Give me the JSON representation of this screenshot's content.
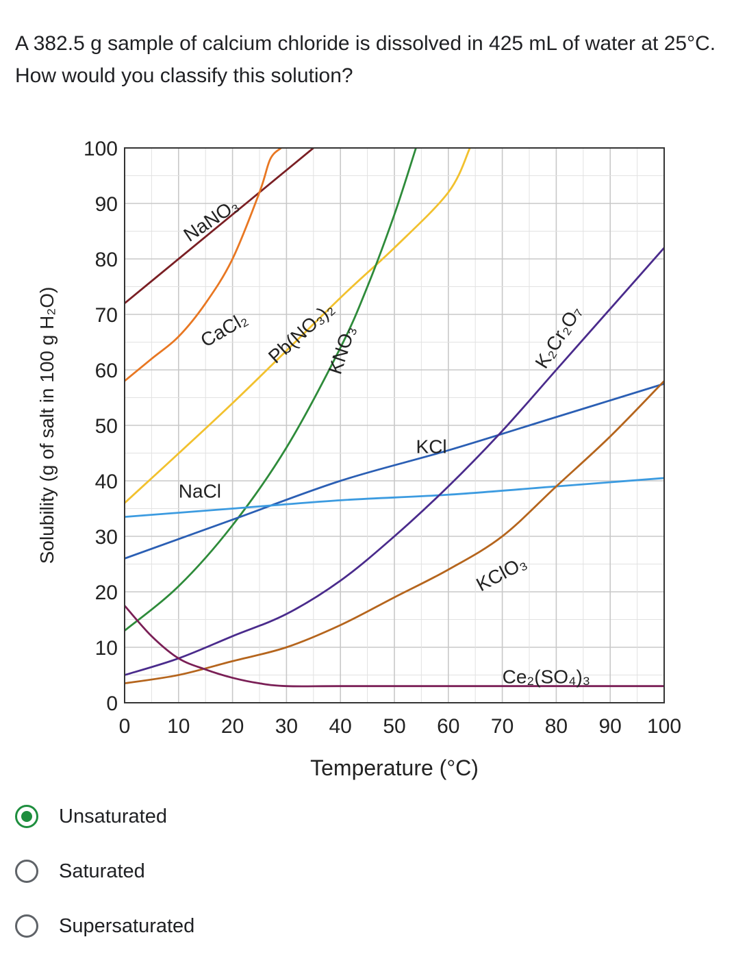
{
  "question": {
    "text": "A 382.5 g sample of calcium chloride is dissolved in 425 mL of water at 25°C. How would you classify this solution?"
  },
  "chart_data": {
    "type": "line",
    "xlabel": "Temperature (°C)",
    "ylabel": "Solubility (g of salt in 100 g H₂O)",
    "xlim": [
      0,
      100
    ],
    "ylim": [
      0,
      100
    ],
    "x_ticks": [
      0,
      10,
      20,
      30,
      40,
      50,
      60,
      70,
      80,
      90,
      100
    ],
    "y_ticks": [
      0,
      10,
      20,
      30,
      40,
      50,
      60,
      70,
      80,
      90,
      100
    ],
    "grid": true,
    "series": [
      {
        "name": "NaNO₃",
        "color": "#7a1f24",
        "x": [
          0,
          10,
          20,
          30,
          35
        ],
        "y": [
          72,
          80,
          88,
          96,
          100
        ]
      },
      {
        "name": "CaCl₂",
        "color": "#e87722",
        "x": [
          0,
          5,
          10,
          15,
          20,
          25,
          27,
          29
        ],
        "y": [
          58,
          62,
          66,
          72,
          80,
          92,
          98,
          100
        ]
      },
      {
        "name": "Pb(NO₃)₂",
        "color": "#f2c12e",
        "x": [
          0,
          20,
          40,
          50,
          60,
          64
        ],
        "y": [
          36,
          54,
          73,
          82,
          92,
          100
        ]
      },
      {
        "name": "KNO₃",
        "color": "#2e8b3a",
        "x": [
          0,
          10,
          20,
          30,
          40,
          45,
          50,
          54
        ],
        "y": [
          13,
          21,
          32,
          46,
          64,
          75,
          88,
          100
        ]
      },
      {
        "name": "KCl",
        "color": "#2b5fb4",
        "x": [
          0,
          20,
          40,
          60,
          80,
          100
        ],
        "y": [
          26,
          33,
          40,
          45.5,
          51.5,
          57.5
        ]
      },
      {
        "name": "NaCl",
        "color": "#3c9be0",
        "x": [
          0,
          20,
          40,
          60,
          80,
          100
        ],
        "y": [
          33.5,
          35,
          36.5,
          37.5,
          39,
          40.5
        ]
      },
      {
        "name": "K₂Cr₂O₇",
        "color": "#4a2b8c",
        "x": [
          0,
          10,
          20,
          30,
          40,
          50,
          60,
          70,
          80,
          90,
          100
        ],
        "y": [
          5,
          8,
          12,
          16,
          22,
          30,
          39,
          49,
          60,
          71,
          82
        ]
      },
      {
        "name": "KClO₃",
        "color": "#b5651d",
        "x": [
          0,
          10,
          20,
          30,
          40,
          50,
          60,
          70,
          80,
          90,
          100
        ],
        "y": [
          3.5,
          5,
          7.5,
          10,
          14,
          19,
          24,
          30,
          39,
          48,
          58
        ]
      },
      {
        "name": "Ce₂(SO₄)₃",
        "color": "#7a1f56",
        "x": [
          0,
          5,
          10,
          15,
          20,
          25,
          30,
          40,
          60,
          80,
          100
        ],
        "y": [
          17.5,
          12,
          8,
          6,
          4.5,
          3.5,
          3,
          3,
          3,
          3,
          3
        ]
      }
    ]
  },
  "options": [
    {
      "label": "Unsaturated",
      "selected": true
    },
    {
      "label": "Saturated",
      "selected": false
    },
    {
      "label": "Supersaturated",
      "selected": false
    }
  ]
}
